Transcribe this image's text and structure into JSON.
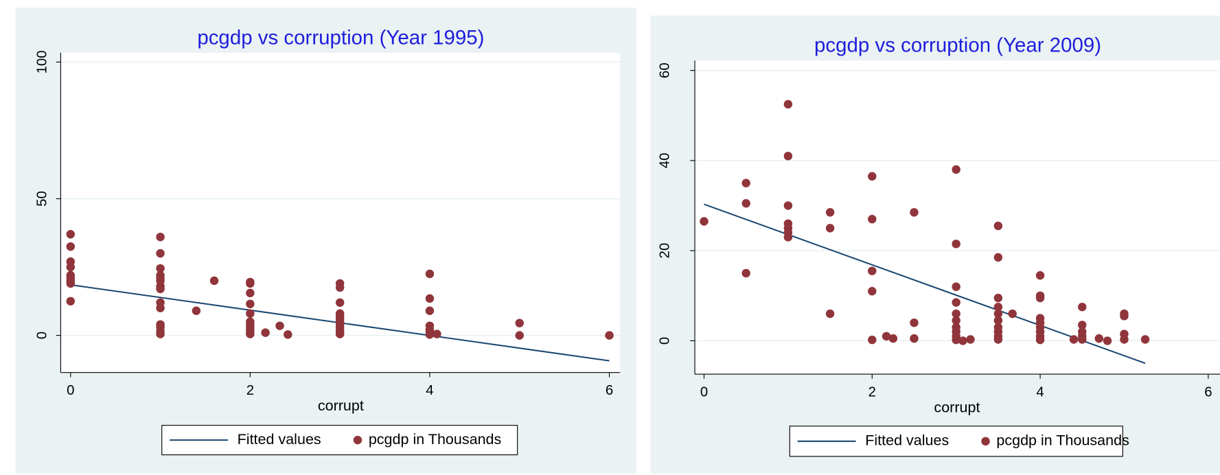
{
  "chart_data": [
    {
      "type": "scatter",
      "title": "pcgdp vs corruption (Year 1995)",
      "x_label": "corrupt",
      "xlim": [
        -0.11,
        6.12
      ],
      "ylim": [
        -13.6,
        103.4
      ],
      "xticks": [
        0,
        2,
        4,
        6
      ],
      "yticks": [
        0,
        50,
        100
      ],
      "grid": true,
      "legend": "bottom",
      "series": [
        {
          "name": "Fitted values",
          "type": "line",
          "color": "#1a476f",
          "x": [
            0,
            6
          ],
          "values": [
            18.5,
            -9.3
          ]
        },
        {
          "name": "pcgdp in Thousands",
          "type": "scatter",
          "color": "#90353b",
          "x": [
            0,
            0,
            0,
            0,
            0,
            0,
            0,
            0,
            0,
            1,
            1,
            1,
            1,
            1,
            1,
            1,
            1,
            1,
            1,
            1,
            1,
            1,
            1,
            1.4,
            1.6,
            2,
            2,
            2,
            2,
            2,
            2,
            2,
            2,
            2,
            2,
            2,
            2.17,
            2.33,
            2.42,
            3,
            3,
            3,
            3,
            3,
            3,
            3,
            3,
            3,
            3,
            3,
            3,
            4,
            4,
            4,
            4,
            4,
            4,
            4,
            4.08,
            5,
            5,
            6
          ],
          "values": [
            37,
            32.5,
            27,
            25,
            22,
            21,
            20,
            19,
            12.5,
            36,
            30,
            24.5,
            22,
            21,
            20,
            18,
            17,
            12,
            10,
            4,
            3,
            1.5,
            0.5,
            9,
            20,
            19.5,
            19,
            15.5,
            11.5,
            8,
            5,
            4,
            3,
            2,
            1,
            0.5,
            1,
            3.5,
            0.3,
            19,
            17.5,
            12,
            8,
            7,
            6,
            5,
            4,
            3,
            2,
            1,
            0.5,
            22.5,
            13.5,
            9,
            3.5,
            2,
            1,
            0.3,
            0.5,
            4.5,
            0,
            0
          ]
        }
      ]
    },
    {
      "type": "scatter",
      "title": "pcgdp vs corruption (Year 2009)",
      "x_label": "corrupt",
      "xlim": [
        -0.11,
        6.14
      ],
      "ylim": [
        -7.4,
        62.2
      ],
      "xticks": [
        0,
        2,
        4,
        6
      ],
      "yticks": [
        0,
        20,
        40,
        60
      ],
      "grid": true,
      "legend": "bottom",
      "series": [
        {
          "name": "Fitted values",
          "type": "line",
          "color": "#1a476f",
          "x": [
            0,
            5.25
          ],
          "values": [
            30.3,
            -5
          ]
        },
        {
          "name": "pcgdp in Thousands",
          "type": "scatter",
          "color": "#90353b",
          "x": [
            0,
            0.5,
            0.5,
            0.5,
            1,
            1,
            1,
            1,
            1,
            1,
            1,
            1.5,
            1.5,
            1.5,
            2,
            2,
            2,
            2,
            2,
            2.17,
            2.25,
            2.5,
            2.5,
            2.5,
            3,
            3,
            3,
            3,
            3,
            3,
            3,
            3,
            3,
            3,
            3.08,
            3.17,
            3.5,
            3.5,
            3.5,
            3.5,
            3.5,
            3.5,
            3.5,
            3.5,
            3.5,
            3.5,
            3.67,
            4,
            4,
            4,
            4,
            4,
            4,
            4,
            4,
            4,
            4.4,
            4.5,
            4.5,
            4.5,
            4.5,
            4.5,
            4.7,
            4.8,
            5,
            5,
            5,
            5,
            5.25
          ],
          "values": [
            26.5,
            35,
            30.5,
            15,
            52.5,
            41,
            30,
            26,
            25,
            24,
            23,
            28.5,
            25,
            6,
            36.5,
            27,
            15.5,
            11,
            0.2,
            1,
            0.5,
            28.5,
            4,
            0.5,
            38,
            21.5,
            12,
            8.5,
            6,
            4.5,
            3,
            2,
            1,
            0.2,
            0,
            0.3,
            25.5,
            18.5,
            9.5,
            7.5,
            6,
            4.5,
            3,
            2,
            1,
            0.3,
            6,
            14.5,
            10,
            9.5,
            5,
            4,
            3,
            2,
            1,
            0.2,
            0.3,
            7.5,
            3.5,
            2,
            1,
            0.3,
            0.5,
            0,
            6,
            5.5,
            1.5,
            0.3,
            0.3
          ]
        }
      ]
    }
  ]
}
